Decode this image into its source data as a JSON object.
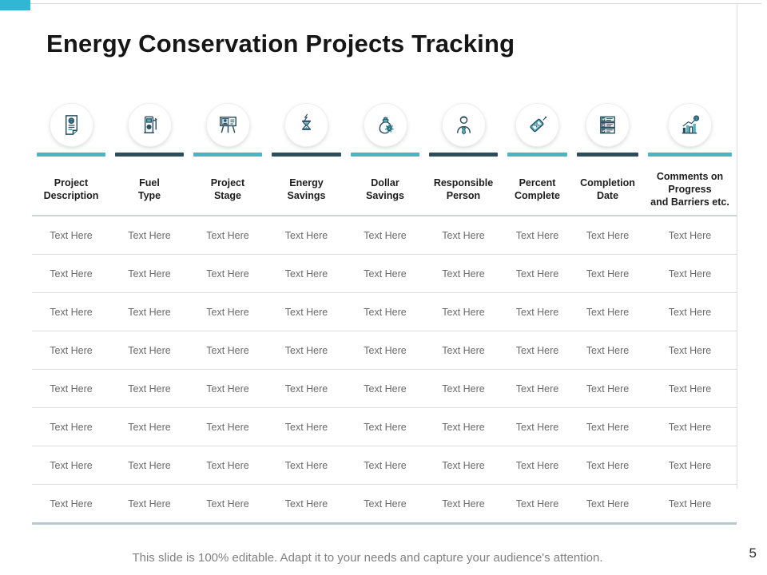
{
  "slide": {
    "title": "Energy Conservation Projects Tracking",
    "footer_note": "This slide is 100% editable. Adapt it to your needs and capture your audience's attention.",
    "page_number": "5",
    "accent_color": "#31b7d3",
    "bar_teal": "#4cb3c3",
    "bar_dark": "#2c4d5e"
  },
  "table": {
    "columns": [
      {
        "label": "Project\nDescription",
        "icon": "document-icon",
        "bar_color": "#4cb3c3"
      },
      {
        "label": "Fuel\nType",
        "icon": "fuel-pump-icon",
        "bar_color": "#2c4d5e"
      },
      {
        "label": "Project\nStage",
        "icon": "presentation-icon",
        "bar_color": "#4cb3c3"
      },
      {
        "label": "Energy\nSavings",
        "icon": "hourglass-energy-icon",
        "bar_color": "#2c4d5e"
      },
      {
        "label": "Dollar\nSavings",
        "icon": "money-bag-gear-icon",
        "bar_color": "#4cb3c3"
      },
      {
        "label": "Responsible\nPerson",
        "icon": "person-icon",
        "bar_color": "#2c4d5e"
      },
      {
        "label": "Percent\nComplete",
        "icon": "discount-tag-icon",
        "bar_color": "#4cb3c3"
      },
      {
        "label": "Completion\nDate",
        "icon": "checklist-icon",
        "bar_color": "#2c4d5e"
      },
      {
        "label": "Comments on\nProgress\nand Barriers etc.",
        "icon": "growth-chart-icon",
        "bar_color": "#4cb3c3"
      }
    ],
    "rows": [
      [
        "Text Here",
        "Text Here",
        "Text Here",
        "Text Here",
        "Text Here",
        "Text Here",
        "Text Here",
        "Text Here",
        "Text Here"
      ],
      [
        "Text Here",
        "Text Here",
        "Text Here",
        "Text Here",
        "Text Here",
        "Text Here",
        "Text Here",
        "Text Here",
        "Text Here"
      ],
      [
        "Text Here",
        "Text Here",
        "Text Here",
        "Text Here",
        "Text Here",
        "Text Here",
        "Text Here",
        "Text Here",
        "Text Here"
      ],
      [
        "Text Here",
        "Text Here",
        "Text Here",
        "Text Here",
        "Text Here",
        "Text Here",
        "Text Here",
        "Text Here",
        "Text Here"
      ],
      [
        "Text Here",
        "Text Here",
        "Text Here",
        "Text Here",
        "Text Here",
        "Text Here",
        "Text Here",
        "Text Here",
        "Text Here"
      ],
      [
        "Text Here",
        "Text Here",
        "Text Here",
        "Text Here",
        "Text Here",
        "Text Here",
        "Text Here",
        "Text Here",
        "Text Here"
      ],
      [
        "Text Here",
        "Text Here",
        "Text Here",
        "Text Here",
        "Text Here",
        "Text Here",
        "Text Here",
        "Text Here",
        "Text Here"
      ],
      [
        "Text Here",
        "Text Here",
        "Text Here",
        "Text Here",
        "Text Here",
        "Text Here",
        "Text Here",
        "Text Here",
        "Text Here"
      ]
    ]
  }
}
